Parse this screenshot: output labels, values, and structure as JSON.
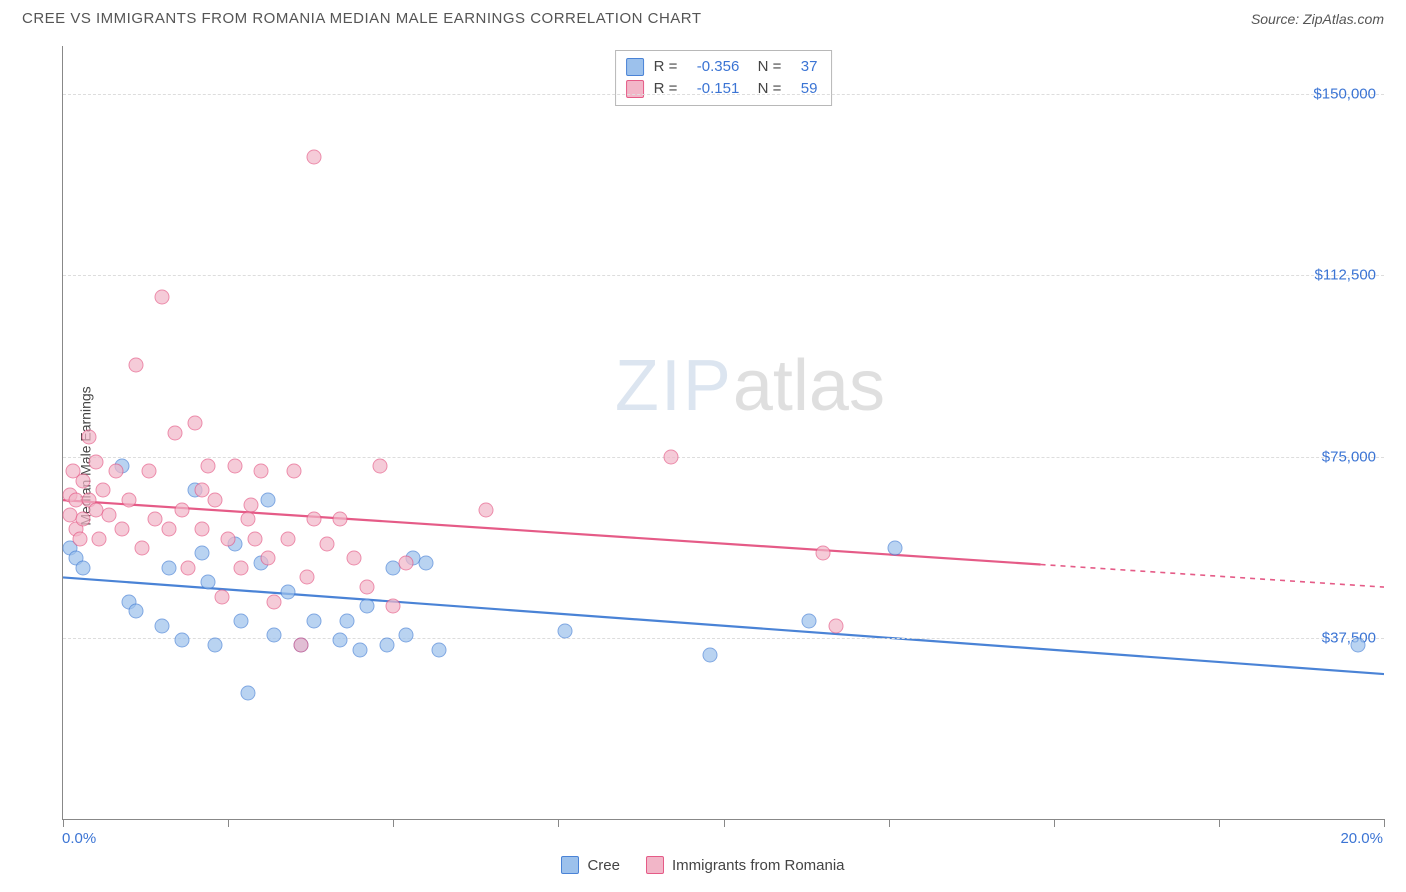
{
  "header": {
    "title": "CREE VS IMMIGRANTS FROM ROMANIA MEDIAN MALE EARNINGS CORRELATION CHART",
    "source": "Source: ZipAtlas.com"
  },
  "watermark": {
    "part1": "ZIP",
    "part2": "atlas"
  },
  "chart": {
    "type": "scatter",
    "ylabel": "Median Male Earnings",
    "xlim": [
      0,
      20
    ],
    "ylim": [
      0,
      160000
    ],
    "x_ticks": [
      0,
      2.5,
      5,
      7.5,
      10,
      12.5,
      15,
      17.5,
      20
    ],
    "x_tick_labels": {
      "0": "0.0%",
      "20": "20.0%"
    },
    "y_gridlines": [
      37500,
      75000,
      112500,
      150000
    ],
    "y_tick_labels": [
      "$37,500",
      "$75,000",
      "$112,500",
      "$150,000"
    ],
    "marker_radius": 7.5,
    "marker_fill_opacity": 0.35,
    "background_color": "#ffffff",
    "grid_color": "#dddddd",
    "axis_color": "#888888",
    "label_color": "#3b74d4",
    "series": [
      {
        "name": "Cree",
        "color_fill": "#9cc1ec",
        "color_stroke": "#4a83d6",
        "stats": {
          "R": "-0.356",
          "N": "37"
        },
        "trend": {
          "y_at_x0": 50000,
          "y_at_x20": 30000,
          "solid_until_x": 20
        },
        "points": [
          [
            0.1,
            56000
          ],
          [
            0.2,
            54000
          ],
          [
            0.3,
            52000
          ],
          [
            0.9,
            73000
          ],
          [
            1.0,
            45000
          ],
          [
            1.1,
            43000
          ],
          [
            1.5,
            40000
          ],
          [
            1.6,
            52000
          ],
          [
            1.8,
            37000
          ],
          [
            2.0,
            68000
          ],
          [
            2.1,
            55000
          ],
          [
            2.2,
            49000
          ],
          [
            2.3,
            36000
          ],
          [
            2.6,
            57000
          ],
          [
            2.7,
            41000
          ],
          [
            2.8,
            26000
          ],
          [
            3.0,
            53000
          ],
          [
            3.1,
            66000
          ],
          [
            3.2,
            38000
          ],
          [
            3.4,
            47000
          ],
          [
            3.6,
            36000
          ],
          [
            3.8,
            41000
          ],
          [
            4.2,
            37000
          ],
          [
            4.3,
            41000
          ],
          [
            4.5,
            35000
          ],
          [
            4.6,
            44000
          ],
          [
            4.9,
            36000
          ],
          [
            5.0,
            52000
          ],
          [
            5.2,
            38000
          ],
          [
            5.3,
            54000
          ],
          [
            5.5,
            53000
          ],
          [
            5.7,
            35000
          ],
          [
            7.6,
            39000
          ],
          [
            9.8,
            34000
          ],
          [
            11.3,
            41000
          ],
          [
            12.6,
            56000
          ],
          [
            19.6,
            36000
          ]
        ]
      },
      {
        "name": "Immigrants from Romania",
        "color_fill": "#f2b6c8",
        "color_stroke": "#e55b87",
        "stats": {
          "R": "-0.151",
          "N": "59"
        },
        "trend": {
          "y_at_x0": 66000,
          "y_at_x20": 48000,
          "solid_until_x": 14.8
        },
        "points": [
          [
            0.1,
            63000
          ],
          [
            0.1,
            67000
          ],
          [
            0.15,
            72000
          ],
          [
            0.2,
            60000
          ],
          [
            0.2,
            66000
          ],
          [
            0.25,
            58000
          ],
          [
            0.3,
            70000
          ],
          [
            0.3,
            62000
          ],
          [
            0.4,
            79000
          ],
          [
            0.4,
            66000
          ],
          [
            0.5,
            64000
          ],
          [
            0.5,
            74000
          ],
          [
            0.55,
            58000
          ],
          [
            0.6,
            68000
          ],
          [
            0.7,
            63000
          ],
          [
            0.8,
            72000
          ],
          [
            0.9,
            60000
          ],
          [
            1.0,
            66000
          ],
          [
            1.1,
            94000
          ],
          [
            1.2,
            56000
          ],
          [
            1.3,
            72000
          ],
          [
            1.4,
            62000
          ],
          [
            1.5,
            108000
          ],
          [
            1.6,
            60000
          ],
          [
            1.7,
            80000
          ],
          [
            1.8,
            64000
          ],
          [
            1.9,
            52000
          ],
          [
            2.0,
            82000
          ],
          [
            2.1,
            60000
          ],
          [
            2.2,
            73000
          ],
          [
            2.3,
            66000
          ],
          [
            2.4,
            46000
          ],
          [
            2.5,
            58000
          ],
          [
            2.6,
            73000
          ],
          [
            2.7,
            52000
          ],
          [
            2.8,
            62000
          ],
          [
            2.85,
            65000
          ],
          [
            2.9,
            58000
          ],
          [
            3.0,
            72000
          ],
          [
            3.1,
            54000
          ],
          [
            3.2,
            45000
          ],
          [
            3.4,
            58000
          ],
          [
            3.5,
            72000
          ],
          [
            3.6,
            36000
          ],
          [
            3.7,
            50000
          ],
          [
            3.8,
            62000
          ],
          [
            3.8,
            137000
          ],
          [
            4.0,
            57000
          ],
          [
            4.2,
            62000
          ],
          [
            4.4,
            54000
          ],
          [
            4.6,
            48000
          ],
          [
            4.8,
            73000
          ],
          [
            5.0,
            44000
          ],
          [
            5.2,
            53000
          ],
          [
            6.4,
            64000
          ],
          [
            9.2,
            75000
          ],
          [
            11.5,
            55000
          ],
          [
            11.7,
            40000
          ],
          [
            2.1,
            68000
          ]
        ]
      }
    ],
    "legend_bottom": [
      {
        "label": "Cree",
        "fill": "#9cc1ec",
        "stroke": "#4a83d6"
      },
      {
        "label": "Immigrants from Romania",
        "fill": "#f2b6c8",
        "stroke": "#e55b87"
      }
    ]
  }
}
